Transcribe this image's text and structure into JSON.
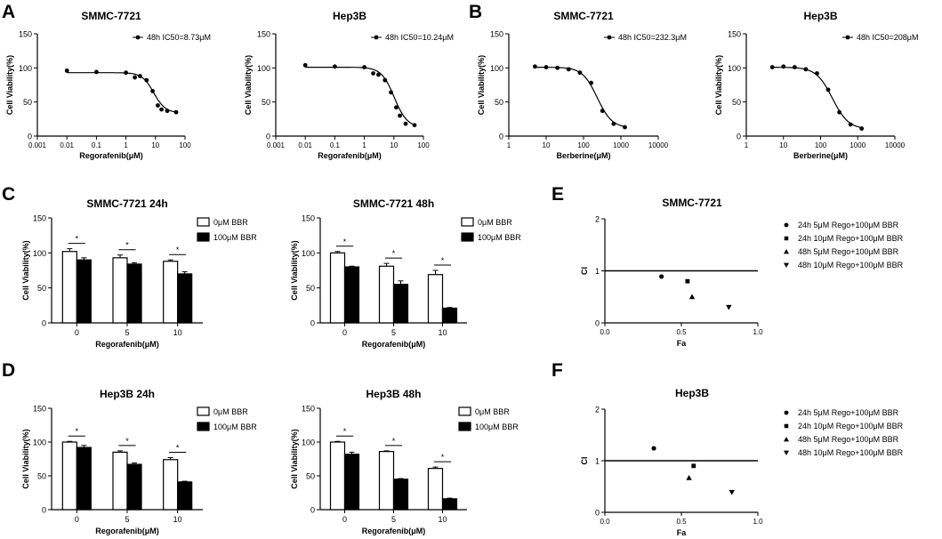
{
  "panel_letters": [
    "A",
    "B",
    "C",
    "D",
    "E",
    "F"
  ],
  "chart_data": [
    {
      "id": "A1",
      "panel": "A",
      "type": "scatter",
      "fit": "sigmoid-log",
      "title": "SMMC-7721",
      "xlabel": "Regorafenib(μM)",
      "ylabel": "Cell Viability(%)",
      "xscale": "log",
      "xlim": [
        0.001,
        100
      ],
      "ylim": [
        0,
        150
      ],
      "xticks": [
        "0.001",
        "0.01",
        "0.1",
        "1",
        "10",
        "100"
      ],
      "yticks": [
        "0",
        "50",
        "100",
        "150"
      ],
      "legend": "48h IC50=8.73μM",
      "x": [
        0.01,
        0.1,
        1,
        2,
        3,
        5,
        8,
        12,
        16,
        25,
        50
      ],
      "y": [
        96,
        94,
        93,
        86,
        88,
        82,
        66,
        45,
        39,
        37,
        35
      ],
      "fit_params": {
        "top": 93,
        "bottom": 34,
        "ic50": 8.73,
        "hill": 2.2
      }
    },
    {
      "id": "A2",
      "panel": "A",
      "type": "scatter",
      "fit": "sigmoid-log",
      "title": "Hep3B",
      "xlabel": "Regorafenib(μM)",
      "ylabel": "Cell Viability(%)",
      "xscale": "log",
      "xlim": [
        0.001,
        100
      ],
      "ylim": [
        0,
        150
      ],
      "xticks": [
        "0.001",
        "0.01",
        "0.1",
        "1",
        "10",
        "100"
      ],
      "yticks": [
        "0",
        "50",
        "100",
        "150"
      ],
      "legend": "48h IC50=10.24μM",
      "x": [
        0.01,
        0.1,
        1,
        2,
        3,
        5,
        8,
        12,
        16,
        25,
        50
      ],
      "y": [
        104,
        102,
        101,
        92,
        90,
        82,
        64,
        42,
        30,
        18,
        16
      ],
      "fit_params": {
        "top": 101,
        "bottom": 13,
        "ic50": 10.24,
        "hill": 2.0
      }
    },
    {
      "id": "B1",
      "panel": "B",
      "type": "scatter",
      "fit": "sigmoid-log",
      "title": "SMMC-7721",
      "xlabel": "Berberine(μM)",
      "ylabel": "Cell Viability(%)",
      "xscale": "log",
      "xlim": [
        1,
        10000
      ],
      "ylim": [
        0,
        150
      ],
      "xticks": [
        "1",
        "10",
        "100",
        "1000",
        "10000"
      ],
      "yticks": [
        "0",
        "50",
        "100",
        "150"
      ],
      "legend": "48h IC50=232.3μM",
      "x": [
        5,
        10,
        20,
        40,
        80,
        160,
        320,
        640,
        1280
      ],
      "y": [
        102,
        101,
        100,
        98,
        93,
        78,
        37,
        18,
        13
      ],
      "fit_params": {
        "top": 101,
        "bottom": 12,
        "ic50": 232.3,
        "hill": 2.2
      }
    },
    {
      "id": "B2",
      "panel": "B",
      "type": "scatter",
      "fit": "sigmoid-log",
      "title": "Hep3B",
      "xlabel": "Berberine(μM)",
      "ylabel": "Cell Viability(%)",
      "xscale": "log",
      "xlim": [
        1,
        10000
      ],
      "ylim": [
        0,
        150
      ],
      "xticks": [
        "1",
        "10",
        "100",
        "1000",
        "10000"
      ],
      "yticks": [
        "0",
        "50",
        "100",
        "150"
      ],
      "legend": "48h IC50=208μM",
      "x": [
        5,
        10,
        20,
        40,
        80,
        160,
        320,
        640,
        1280
      ],
      "y": [
        101,
        102,
        101,
        98,
        92,
        68,
        35,
        17,
        11
      ],
      "fit_params": {
        "top": 101,
        "bottom": 10,
        "ic50": 208,
        "hill": 2.0
      }
    },
    {
      "id": "C1",
      "panel": "C",
      "type": "bar",
      "title": "SMMC-7721 24h",
      "xlabel": "Regorafenib(μM)",
      "ylabel": "Cell Viability(%)",
      "ylim": [
        0,
        150
      ],
      "yticks": [
        "0",
        "50",
        "100",
        "150"
      ],
      "categories": [
        "0",
        "5",
        "10"
      ],
      "series": [
        {
          "name": "0μM BBR",
          "fill": "#ffffff",
          "values": [
            102,
            93,
            88
          ],
          "errors": [
            4,
            4,
            2
          ]
        },
        {
          "name": "100μM BBR",
          "fill": "#000000",
          "values": [
            90,
            84,
            70
          ],
          "errors": [
            3,
            2,
            3
          ]
        }
      ],
      "significance": [
        "*",
        "*",
        "*"
      ]
    },
    {
      "id": "C2",
      "panel": "C",
      "type": "bar",
      "title": "SMMC-7721  48h",
      "xlabel": "Regorafenib(μM)",
      "ylabel": "Cell Viability(%)",
      "ylim": [
        0,
        150
      ],
      "yticks": [
        "0",
        "50",
        "100",
        "150"
      ],
      "categories": [
        "0",
        "5",
        "10"
      ],
      "series": [
        {
          "name": "0μM BBR",
          "fill": "#ffffff",
          "values": [
            100,
            81,
            69
          ],
          "errors": [
            2,
            4,
            6
          ]
        },
        {
          "name": "100μM BBR",
          "fill": "#000000",
          "values": [
            80,
            55,
            21
          ],
          "errors": [
            1,
            5,
            1
          ]
        }
      ],
      "significance": [
        "*",
        "*",
        "*"
      ]
    },
    {
      "id": "D1",
      "panel": "D",
      "type": "bar",
      "title": "Hep3B 24h",
      "xlabel": "Regorafenib(μM)",
      "ylabel": "Cell Viability(%)",
      "ylim": [
        0,
        150
      ],
      "yticks": [
        "0",
        "50",
        "100",
        "150"
      ],
      "categories": [
        "0",
        "5",
        "10"
      ],
      "series": [
        {
          "name": "0μM BBR",
          "fill": "#ffffff",
          "values": [
            100,
            85,
            74
          ],
          "errors": [
            1,
            2,
            3
          ]
        },
        {
          "name": "100μM BBR",
          "fill": "#000000",
          "values": [
            92,
            67,
            41
          ],
          "errors": [
            3,
            2,
            1
          ]
        }
      ],
      "significance": [
        "*",
        "*",
        "*"
      ]
    },
    {
      "id": "D2",
      "panel": "D",
      "type": "bar",
      "title": "Hep3B 48h",
      "xlabel": "Regorafenib(μM)",
      "ylabel": "Cell Viability(%)",
      "ylim": [
        0,
        150
      ],
      "yticks": [
        "0",
        "50",
        "100",
        "150"
      ],
      "categories": [
        "0",
        "5",
        "10"
      ],
      "series": [
        {
          "name": "0μM BBR",
          "fill": "#ffffff",
          "values": [
            100,
            86,
            61
          ],
          "errors": [
            1,
            1,
            2
          ]
        },
        {
          "name": "100μM BBR",
          "fill": "#000000",
          "values": [
            82,
            45,
            16
          ],
          "errors": [
            3,
            1,
            1
          ]
        }
      ],
      "significance": [
        "*",
        "*",
        "*"
      ]
    },
    {
      "id": "E",
      "panel": "E",
      "type": "scatter",
      "title": "SMMC-7721",
      "xlabel": "Fa",
      "ylabel": "CI",
      "xlim": [
        0,
        1
      ],
      "ylim": [
        0,
        2
      ],
      "xticks": [
        "0.0",
        "0.5",
        "1.0"
      ],
      "yticks": [
        "0",
        "1",
        "2"
      ],
      "reference_line": 1,
      "points": [
        {
          "name": "24h 5μM Rego+100μM BBR",
          "marker": "circle",
          "x": 0.37,
          "y": 0.89
        },
        {
          "name": "24h 10μM Rego+100μM BBR",
          "marker": "square",
          "x": 0.54,
          "y": 0.8
        },
        {
          "name": "48h 5μM Rego+100μM BBR",
          "marker": "triangle-up",
          "x": 0.57,
          "y": 0.5
        },
        {
          "name": "48h 10μM Rego+100μM BBR",
          "marker": "triangle-down",
          "x": 0.81,
          "y": 0.3
        }
      ]
    },
    {
      "id": "F",
      "panel": "F",
      "type": "scatter",
      "title": "Hep3B",
      "xlabel": "Fa",
      "ylabel": "CI",
      "xlim": [
        0,
        1
      ],
      "ylim": [
        0,
        2
      ],
      "xticks": [
        "0.0",
        "0.5",
        "1.0"
      ],
      "yticks": [
        "0",
        "1",
        "2"
      ],
      "reference_line": 1,
      "points": [
        {
          "name": "24h 5μM Rego+100μM BBR",
          "marker": "circle",
          "x": 0.32,
          "y": 1.24
        },
        {
          "name": "24h 10μM Rego+100μM BBR",
          "marker": "square",
          "x": 0.58,
          "y": 0.9
        },
        {
          "name": "48h 5μM Rego+100μM BBR",
          "marker": "triangle-up",
          "x": 0.55,
          "y": 0.67
        },
        {
          "name": "48h 10μM Rego+100μM BBR",
          "marker": "triangle-down",
          "x": 0.83,
          "y": 0.39
        }
      ]
    }
  ]
}
